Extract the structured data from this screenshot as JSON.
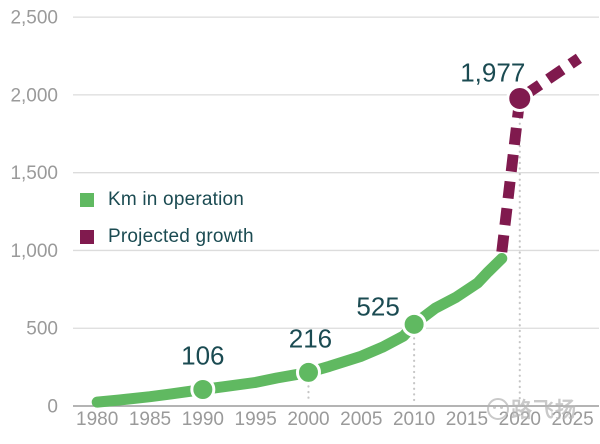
{
  "watermark": {
    "text": "路飞扬"
  },
  "legend": {
    "items": [
      {
        "label": "Km in operation",
        "color": "#60b961"
      },
      {
        "label": "Projected growth",
        "color": "#801a4e"
      }
    ]
  },
  "colors": {
    "background": "#ffffff",
    "gridline": "#dcdcdc",
    "axis_line": "#9c9c9c",
    "tick_text": "#9a9a9a",
    "data_label_text": "#1b4b52",
    "guide_dots": "#c6c6c6",
    "marker_ring": "#ffffff"
  },
  "chart_data": {
    "type": "line",
    "title": "",
    "xlabel": "",
    "ylabel": "",
    "xlim": [
      1977.9,
      2027.5
    ],
    "ylim": [
      0,
      2520
    ],
    "grid": "horizontal",
    "legend_position": "center-left",
    "x_ticks": [
      {
        "value": 1980,
        "label": "1980"
      },
      {
        "value": 1985,
        "label": "1985"
      },
      {
        "value": 1990,
        "label": "1990"
      },
      {
        "value": 1995,
        "label": "1995"
      },
      {
        "value": 2000,
        "label": "2000"
      },
      {
        "value": 2005,
        "label": "2005"
      },
      {
        "value": 2010,
        "label": "2010"
      },
      {
        "value": 2015,
        "label": "2015"
      },
      {
        "value": 2020,
        "label": "2020"
      },
      {
        "value": 2025,
        "label": "2025"
      }
    ],
    "y_ticks": [
      {
        "value": 0,
        "label": "0"
      },
      {
        "value": 500,
        "label": "500"
      },
      {
        "value": 1000,
        "label": "1,000"
      },
      {
        "value": 1500,
        "label": "1,500"
      },
      {
        "value": 2000,
        "label": "2,000"
      },
      {
        "value": 2500,
        "label": "2,500"
      }
    ],
    "series": [
      {
        "name": "Km in operation",
        "color": "#60b961",
        "line_style": "solid",
        "points": [
          [
            1980,
            25
          ],
          [
            1982,
            38
          ],
          [
            1985,
            60
          ],
          [
            1987,
            78
          ],
          [
            1990,
            106
          ],
          [
            1992,
            124
          ],
          [
            1995,
            152
          ],
          [
            1997,
            180
          ],
          [
            2000,
            216
          ],
          [
            2002,
            255
          ],
          [
            2005,
            320
          ],
          [
            2007,
            378
          ],
          [
            2009,
            450
          ],
          [
            2010,
            525
          ],
          [
            2012,
            628
          ],
          [
            2014,
            700
          ],
          [
            2016,
            790
          ],
          [
            2017,
            862
          ],
          [
            2018.3,
            948
          ]
        ],
        "markers": [
          {
            "x": 1990,
            "y": 106,
            "label": "106",
            "label_dx": 0,
            "label_dy": -25
          },
          {
            "x": 2000,
            "y": 216,
            "label": "216",
            "label_dx": 2,
            "label_dy": -25
          },
          {
            "x": 2010,
            "y": 525,
            "label": "525",
            "label_dx": -36,
            "label_dy": -9
          }
        ]
      },
      {
        "name": "Projected growth",
        "color": "#801a4e",
        "line_style": "dashed",
        "points": [
          [
            2018.3,
            990
          ],
          [
            2020,
            1977
          ],
          [
            2025.6,
            2235
          ]
        ],
        "markers": [
          {
            "x": 2020,
            "y": 1977,
            "label": "1,977",
            "label_dx": -27,
            "label_dy": -17
          }
        ]
      }
    ],
    "guides": [
      {
        "x": 2000,
        "from_value": 216
      },
      {
        "x": 2010,
        "from_value": 525
      },
      {
        "x": 2020,
        "from_value": 1977
      }
    ]
  }
}
